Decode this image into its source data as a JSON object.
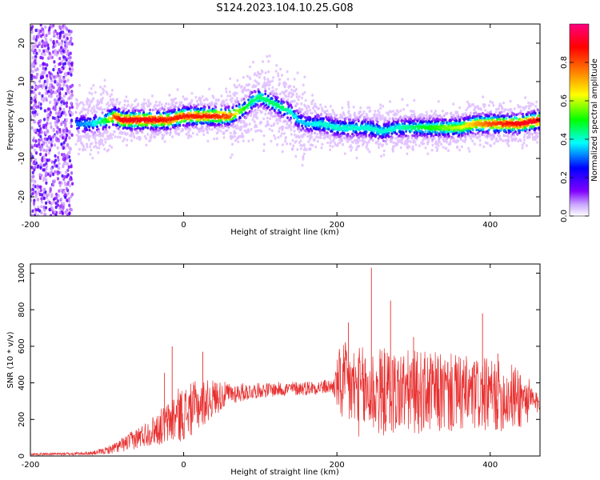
{
  "title": "S124.2023.104.10.25.G08",
  "chart_data": [
    {
      "type": "heatmap",
      "xlabel": "Height of straight line (km)",
      "ylabel": "Frequency (Hz)",
      "xlim": [
        -200,
        465
      ],
      "ylim": [
        -25,
        25
      ],
      "xticks": [
        "-200",
        "0",
        "200",
        "400"
      ],
      "xtick_values": [
        -200,
        0,
        200,
        400
      ],
      "yticks": [
        "-20",
        "-10",
        "0",
        "10",
        "20"
      ],
      "ytick_values": [
        -20,
        -10,
        0,
        10,
        20
      ],
      "colorbar": {
        "label": "Normalized spectral amplitude",
        "range": [
          0,
          1
        ],
        "ticks": [
          "0.0",
          "0.2",
          "0.4",
          "0.6",
          "0.8"
        ],
        "tick_values": [
          0,
          0.2,
          0.4,
          0.6,
          0.8
        ],
        "colormap": [
          "#ffffff",
          "#8000ff",
          "#0000ff",
          "#00ffff",
          "#00ff00",
          "#ffff00",
          "#ff8000",
          "#ff0000",
          "#ff0080"
        ]
      },
      "ridge": {
        "x": [
          -140,
          -120,
          -100,
          -90,
          -80,
          -60,
          -40,
          -20,
          0,
          20,
          40,
          60,
          70,
          80,
          90,
          100,
          110,
          120,
          130,
          140,
          150,
          160,
          180,
          200,
          220,
          240,
          260,
          280,
          300,
          320,
          340,
          360,
          380,
          400,
          420,
          440,
          465
        ],
        "y": [
          -1,
          -1,
          0,
          1,
          0,
          0,
          0,
          0,
          1,
          1,
          1,
          1,
          2,
          3,
          5,
          6,
          5,
          4,
          3,
          2,
          0,
          -1,
          -1,
          -2,
          -2,
          -2,
          -3,
          -2,
          -2,
          -2,
          -2,
          -2,
          -1,
          -1,
          -1,
          -1,
          0
        ],
        "peak_amplitude": [
          0.3,
          0.35,
          0.5,
          0.8,
          0.9,
          0.9,
          0.9,
          0.85,
          0.85,
          0.85,
          0.85,
          0.8,
          0.6,
          0.5,
          0.45,
          0.45,
          0.45,
          0.45,
          0.45,
          0.4,
          0.35,
          0.35,
          0.4,
          0.4,
          0.4,
          0.4,
          0.4,
          0.4,
          0.45,
          0.5,
          0.55,
          0.6,
          0.7,
          0.8,
          0.85,
          0.9,
          0.9
        ]
      },
      "noise_region_x": [
        -200,
        -145
      ]
    },
    {
      "type": "line",
      "xlabel": "Height of straight line (km)",
      "ylabel": "SNR (10 * v/v)",
      "xlim": [
        -200,
        465
      ],
      "ylim": [
        0,
        1050
      ],
      "xticks": [
        "-200",
        "0",
        "200",
        "400"
      ],
      "xtick_values": [
        -200,
        0,
        200,
        400
      ],
      "yticks": [
        "0",
        "200",
        "400",
        "600",
        "800",
        "1000"
      ],
      "ytick_values": [
        0,
        200,
        400,
        600,
        800,
        1000
      ],
      "color": "#e83030",
      "envelope": {
        "x": [
          -200,
          -150,
          -120,
          -100,
          -80,
          -60,
          -40,
          -20,
          -10,
          0,
          20,
          40,
          60,
          100,
          150,
          195,
          205,
          230,
          240,
          250,
          270,
          300,
          350,
          400,
          440,
          465
        ],
        "mean": [
          10,
          12,
          15,
          30,
          60,
          100,
          140,
          180,
          220,
          230,
          280,
          320,
          340,
          360,
          370,
          380,
          400,
          350,
          350,
          350,
          350,
          350,
          340,
          330,
          320,
          280
        ],
        "spread": [
          6,
          8,
          10,
          20,
          40,
          60,
          80,
          120,
          150,
          150,
          140,
          100,
          60,
          40,
          40,
          40,
          230,
          250,
          250,
          250,
          240,
          230,
          220,
          200,
          180,
          40
        ]
      },
      "peaks": [
        {
          "x": -25,
          "y": 455
        },
        {
          "x": -15,
          "y": 600
        },
        {
          "x": 25,
          "y": 570
        },
        {
          "x": 210,
          "y": 540
        },
        {
          "x": 215,
          "y": 730
        },
        {
          "x": 245,
          "y": 1030
        },
        {
          "x": 270,
          "y": 850
        },
        {
          "x": 300,
          "y": 650
        },
        {
          "x": 390,
          "y": 780
        },
        {
          "x": 410,
          "y": 560
        }
      ]
    }
  ]
}
